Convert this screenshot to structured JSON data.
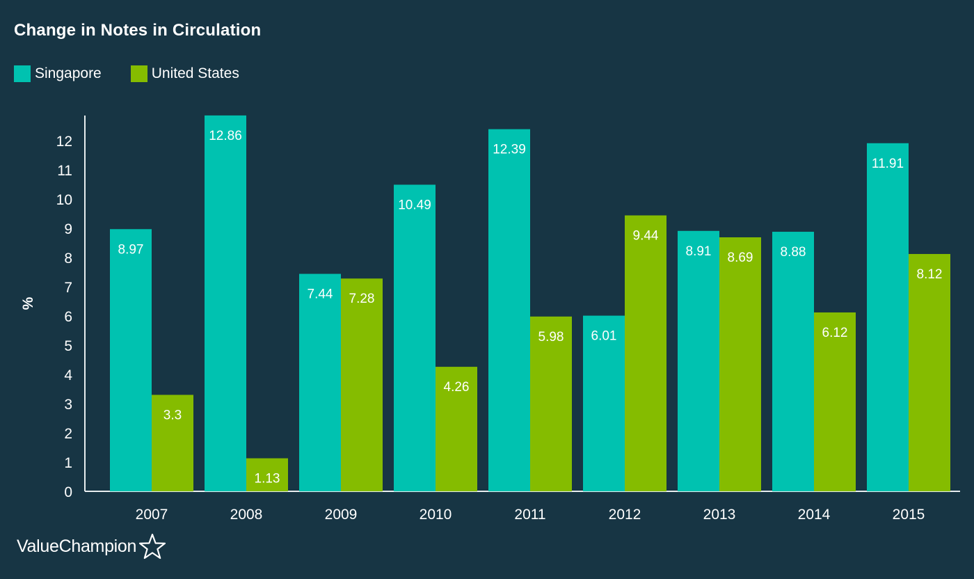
{
  "title": "Change in Notes in Circulation",
  "legend": [
    {
      "name": "Singapore",
      "color": "#00c2b0"
    },
    {
      "name": "United States",
      "color": "#85bc00"
    }
  ],
  "brand": "ValueChampion",
  "brand_icon": "star-outline-icon",
  "chart_data": {
    "type": "bar",
    "title": "Change in Notes in Circulation",
    "xlabel": "",
    "ylabel": "%",
    "ylim": [
      0,
      12.9
    ],
    "yticks": [
      0,
      1,
      2,
      3,
      4,
      5,
      6,
      7,
      8,
      9,
      10,
      11,
      12
    ],
    "grid": false,
    "legend_position": "top-left",
    "categories": [
      "2007",
      "2008",
      "2009",
      "2010",
      "2011",
      "2012",
      "2013",
      "2014",
      "2015"
    ],
    "series": [
      {
        "name": "Singapore",
        "color": "#00c2b0",
        "values": [
          8.97,
          12.86,
          7.44,
          10.49,
          12.39,
          6.01,
          8.91,
          8.88,
          11.91
        ]
      },
      {
        "name": "United States",
        "color": "#85bc00",
        "values": [
          3.3,
          1.13,
          7.28,
          4.26,
          5.98,
          9.44,
          8.69,
          6.12,
          8.12
        ]
      }
    ]
  }
}
